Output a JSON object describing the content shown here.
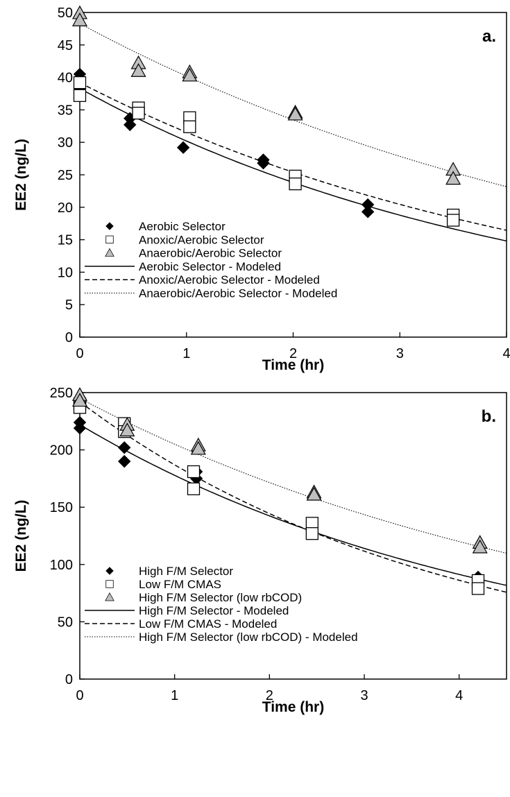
{
  "chart_data": [
    {
      "type": "scatter",
      "panel_label": "a.",
      "xlabel": "Time (hr)",
      "ylabel": "EE2 (ng/L)",
      "xlim": [
        0,
        4
      ],
      "ylim": [
        0,
        50
      ],
      "xticks": [
        0,
        1,
        2,
        3,
        4
      ],
      "yticks": [
        0,
        5,
        10,
        15,
        20,
        25,
        30,
        35,
        40,
        45,
        50
      ],
      "grid": false,
      "legend_position": "bottom-left",
      "series": [
        {
          "name": "Aerobic Selector",
          "marker": "diamond",
          "color": "#000000",
          "points": [
            [
              0,
              40.5
            ],
            [
              0,
              38.3
            ],
            [
              0.47,
              32.7
            ],
            [
              0.47,
              33.7
            ],
            [
              0.97,
              29.2
            ],
            [
              1.72,
              27.3
            ],
            [
              1.72,
              26.8
            ],
            [
              2.7,
              20.4
            ],
            [
              2.7,
              19.3
            ]
          ]
        },
        {
          "name": "Anoxic/Aerobic Selector",
          "marker": "square",
          "color": "#000000",
          "points": [
            [
              0,
              39.2
            ],
            [
              0,
              37.2
            ],
            [
              0.55,
              35.3
            ],
            [
              0.55,
              34.5
            ],
            [
              1.03,
              33.8
            ],
            [
              1.03,
              32.4
            ],
            [
              2.02,
              24.8
            ],
            [
              2.02,
              23.6
            ],
            [
              3.5,
              18.8
            ],
            [
              3.5,
              18.0
            ]
          ]
        },
        {
          "name": "Anaerobic/Aerobic Selector",
          "marker": "triangle",
          "color": "#bfbfbf",
          "points": [
            [
              0,
              49.9
            ],
            [
              0,
              48.8
            ],
            [
              0.55,
              42.2
            ],
            [
              0.55,
              41.0
            ],
            [
              1.03,
              40.8
            ],
            [
              1.03,
              40.3
            ],
            [
              2.02,
              34.6
            ],
            [
              2.02,
              34.3
            ],
            [
              3.5,
              25.8
            ],
            [
              3.5,
              24.4
            ]
          ]
        },
        {
          "name": "Aerobic Selector - Modeled",
          "line": "solid",
          "color": "#000000",
          "model": {
            "a": 38.3,
            "k": 0.2375
          }
        },
        {
          "name": "Anoxic/Aerobic Selector - Modeled",
          "line": "dashed",
          "color": "#000000",
          "model": {
            "a": 39.2,
            "k": 0.217
          }
        },
        {
          "name": "Anaerobic/Aerobic Selector - Modeled",
          "line": "dotted",
          "color": "#000000",
          "model": {
            "a": 48.3,
            "k": 0.1836
          }
        }
      ]
    },
    {
      "type": "scatter",
      "panel_label": "b.",
      "xlabel": "Time (hr)",
      "ylabel": "EE2 (ng/L)",
      "xlim": [
        0,
        4.5
      ],
      "ylim": [
        0,
        250
      ],
      "xticks": [
        0,
        1,
        2,
        3,
        4
      ],
      "yticks": [
        0,
        50,
        100,
        150,
        200,
        250
      ],
      "grid": false,
      "legend_position": "bottom-left",
      "series": [
        {
          "name": "High F/M Selector",
          "marker": "diamond",
          "color": "#000000",
          "points": [
            [
              0,
              224
            ],
            [
              0,
              219
            ],
            [
              0.47,
              202
            ],
            [
              0.47,
              190
            ],
            [
              1.23,
              181
            ],
            [
              1.23,
              175
            ],
            [
              2.45,
              129
            ],
            [
              2.45,
              127
            ],
            [
              4.2,
              89
            ],
            [
              4.2,
              86
            ]
          ]
        },
        {
          "name": "Low F/M CMAS",
          "marker": "square",
          "color": "#000000",
          "points": [
            [
              0,
              240
            ],
            [
              0,
              237
            ],
            [
              0.47,
              223
            ],
            [
              0.47,
              216
            ],
            [
              1.2,
              181
            ],
            [
              1.2,
              166
            ],
            [
              2.45,
              136
            ],
            [
              2.45,
              127
            ],
            [
              4.2,
              86
            ],
            [
              4.2,
              79
            ]
          ]
        },
        {
          "name": "High F/M Selector (low rbCOD)",
          "marker": "triangle",
          "color": "#bfbfbf",
          "points": [
            [
              0,
              248
            ],
            [
              0,
              243
            ],
            [
              0.5,
              222
            ],
            [
              0.5,
              217
            ],
            [
              1.25,
              204
            ],
            [
              1.25,
              201
            ],
            [
              2.47,
              163
            ],
            [
              2.47,
              161
            ],
            [
              4.22,
              119
            ],
            [
              4.22,
              115
            ]
          ]
        },
        {
          "name": "High F/M Selector - Modeled",
          "line": "solid",
          "color": "#000000",
          "model": {
            "a": 222,
            "k": 0.222
          }
        },
        {
          "name": "Low F/M CMAS - Modeled",
          "line": "dashed",
          "color": "#000000",
          "model": {
            "a": 242,
            "k": 0.258
          }
        },
        {
          "name": "High F/M Selector (low rbCOD) - Modeled",
          "line": "dotted",
          "color": "#000000",
          "model": {
            "a": 245,
            "k": 0.1783
          }
        }
      ]
    }
  ]
}
